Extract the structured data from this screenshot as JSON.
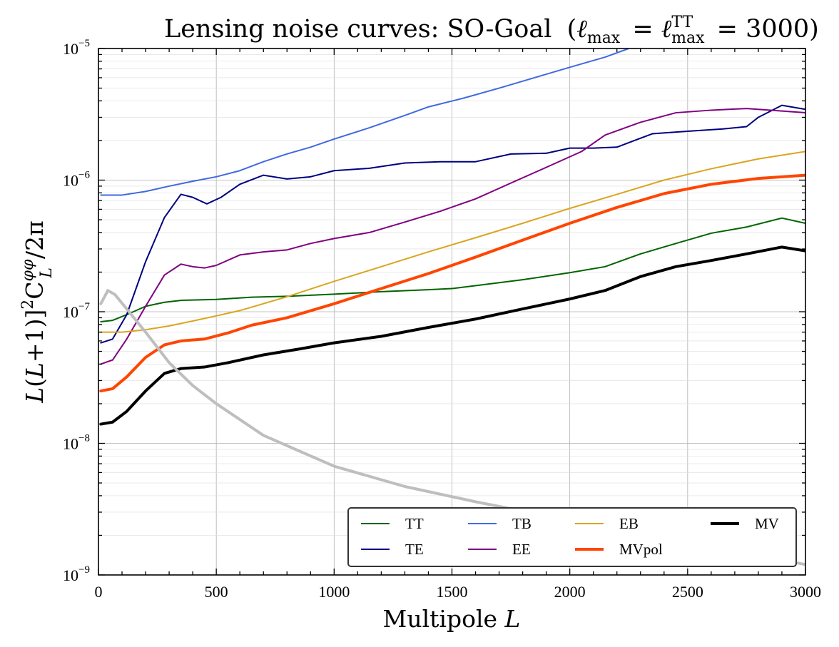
{
  "chart_data": {
    "type": "line",
    "title": "Lensing noise curves: SO-Goal",
    "title_subscript_expression": "(ℓmax = ℓTTmax = 3000)",
    "xlabel": "Multipole L",
    "ylabel": "L(L+1)]²C_L^φφ/2π",
    "x_scale": "linear",
    "y_scale": "log",
    "xlim": [
      0,
      3000
    ],
    "ylim": [
      1e-09,
      1e-05
    ],
    "x_ticks": [
      0,
      500,
      1000,
      1500,
      2000,
      2500,
      3000
    ],
    "x_tick_labels": [
      "0",
      "500",
      "1000",
      "1500",
      "2000",
      "2500",
      "3000"
    ],
    "y_tick_exponents": [
      -9,
      -8,
      -7,
      -6,
      -5
    ],
    "y_tick_base": "10",
    "grid": true,
    "legend": {
      "placement": "lower-right",
      "columns": 4
    },
    "series": [
      {
        "name": "TT",
        "color": "#006400",
        "width": "thin",
        "points": [
          [
            10,
            8.4e-08
          ],
          [
            60,
            8.6e-08
          ],
          [
            120,
            9.5e-08
          ],
          [
            200,
            1.1e-07
          ],
          [
            280,
            1.18e-07
          ],
          [
            350,
            1.22e-07
          ],
          [
            500,
            1.24e-07
          ],
          [
            650,
            1.29e-07
          ],
          [
            800,
            1.31e-07
          ],
          [
            1000,
            1.36e-07
          ],
          [
            1200,
            1.42e-07
          ],
          [
            1400,
            1.47e-07
          ],
          [
            1500,
            1.5e-07
          ],
          [
            1650,
            1.62e-07
          ],
          [
            1800,
            1.75e-07
          ],
          [
            2000,
            1.98e-07
          ],
          [
            2150,
            2.2e-07
          ],
          [
            2300,
            2.75e-07
          ],
          [
            2450,
            3.3e-07
          ],
          [
            2600,
            3.95e-07
          ],
          [
            2750,
            4.4e-07
          ],
          [
            2900,
            5.15e-07
          ],
          [
            3000,
            4.7e-07
          ]
        ]
      },
      {
        "name": "TE",
        "color": "#00007f",
        "width": "thin",
        "points": [
          [
            10,
            5.8e-08
          ],
          [
            60,
            6.2e-08
          ],
          [
            120,
            9.5e-08
          ],
          [
            200,
            2.4e-07
          ],
          [
            280,
            5.2e-07
          ],
          [
            350,
            7.8e-07
          ],
          [
            400,
            7.4e-07
          ],
          [
            460,
            6.6e-07
          ],
          [
            520,
            7.4e-07
          ],
          [
            600,
            9.3e-07
          ],
          [
            700,
            1.09e-06
          ],
          [
            800,
            1.02e-06
          ],
          [
            900,
            1.06e-06
          ],
          [
            1000,
            1.18e-06
          ],
          [
            1150,
            1.23e-06
          ],
          [
            1300,
            1.35e-06
          ],
          [
            1450,
            1.38e-06
          ],
          [
            1600,
            1.38e-06
          ],
          [
            1750,
            1.58e-06
          ],
          [
            1900,
            1.6e-06
          ],
          [
            2000,
            1.75e-06
          ],
          [
            2100,
            1.75e-06
          ],
          [
            2200,
            1.78e-06
          ],
          [
            2350,
            2.25e-06
          ],
          [
            2500,
            2.35e-06
          ],
          [
            2650,
            2.45e-06
          ],
          [
            2750,
            2.55e-06
          ],
          [
            2800,
            3e-06
          ],
          [
            2900,
            3.7e-06
          ],
          [
            3000,
            3.45e-06
          ]
        ]
      },
      {
        "name": "TB",
        "color": "#4169e1",
        "width": "thin",
        "points": [
          [
            10,
            7.7e-07
          ],
          [
            100,
            7.7e-07
          ],
          [
            200,
            8.2e-07
          ],
          [
            300,
            9e-07
          ],
          [
            400,
            9.8e-07
          ],
          [
            500,
            1.06e-06
          ],
          [
            600,
            1.18e-06
          ],
          [
            700,
            1.38e-06
          ],
          [
            800,
            1.58e-06
          ],
          [
            900,
            1.78e-06
          ],
          [
            1000,
            2.05e-06
          ],
          [
            1150,
            2.5e-06
          ],
          [
            1300,
            3.1e-06
          ],
          [
            1400,
            3.6e-06
          ],
          [
            1550,
            4.2e-06
          ],
          [
            1700,
            5e-06
          ],
          [
            1850,
            6e-06
          ],
          [
            2000,
            7.2e-06
          ],
          [
            2150,
            8.6e-06
          ],
          [
            2250,
            1e-05
          ]
        ]
      },
      {
        "name": "EE",
        "color": "#800080",
        "width": "thin",
        "points": [
          [
            10,
            4e-08
          ],
          [
            60,
            4.3e-08
          ],
          [
            120,
            6.2e-08
          ],
          [
            200,
            1.1e-07
          ],
          [
            280,
            1.9e-07
          ],
          [
            350,
            2.3e-07
          ],
          [
            400,
            2.2e-07
          ],
          [
            450,
            2.15e-07
          ],
          [
            500,
            2.25e-07
          ],
          [
            600,
            2.7e-07
          ],
          [
            700,
            2.85e-07
          ],
          [
            800,
            2.95e-07
          ],
          [
            900,
            3.3e-07
          ],
          [
            1000,
            3.6e-07
          ],
          [
            1150,
            4e-07
          ],
          [
            1300,
            4.8e-07
          ],
          [
            1450,
            5.8e-07
          ],
          [
            1600,
            7.2e-07
          ],
          [
            1750,
            9.5e-07
          ],
          [
            1900,
            1.25e-06
          ],
          [
            2050,
            1.65e-06
          ],
          [
            2150,
            2.2e-06
          ],
          [
            2300,
            2.75e-06
          ],
          [
            2450,
            3.25e-06
          ],
          [
            2600,
            3.4e-06
          ],
          [
            2750,
            3.5e-06
          ],
          [
            2900,
            3.35e-06
          ],
          [
            3000,
            3.25e-06
          ]
        ]
      },
      {
        "name": "EB",
        "color": "#daa520",
        "width": "thin",
        "points": [
          [
            10,
            7e-08
          ],
          [
            100,
            7e-08
          ],
          [
            200,
            7.3e-08
          ],
          [
            300,
            7.8e-08
          ],
          [
            400,
            8.5e-08
          ],
          [
            500,
            9.3e-08
          ],
          [
            600,
            1.02e-07
          ],
          [
            800,
            1.3e-07
          ],
          [
            1000,
            1.7e-07
          ],
          [
            1200,
            2.2e-07
          ],
          [
            1400,
            2.85e-07
          ],
          [
            1600,
            3.65e-07
          ],
          [
            1800,
            4.7e-07
          ],
          [
            2000,
            6.1e-07
          ],
          [
            2200,
            7.8e-07
          ],
          [
            2400,
            1e-06
          ],
          [
            2600,
            1.22e-06
          ],
          [
            2800,
            1.45e-06
          ],
          [
            3000,
            1.65e-06
          ]
        ]
      },
      {
        "name": "MVpol",
        "color": "#ff4500",
        "width": "thick",
        "points": [
          [
            10,
            2.5e-08
          ],
          [
            60,
            2.6e-08
          ],
          [
            120,
            3.2e-08
          ],
          [
            200,
            4.5e-08
          ],
          [
            280,
            5.6e-08
          ],
          [
            350,
            6e-08
          ],
          [
            450,
            6.2e-08
          ],
          [
            550,
            6.9e-08
          ],
          [
            650,
            7.9e-08
          ],
          [
            800,
            9e-08
          ],
          [
            1000,
            1.15e-07
          ],
          [
            1200,
            1.5e-07
          ],
          [
            1400,
            1.95e-07
          ],
          [
            1600,
            2.6e-07
          ],
          [
            1800,
            3.5e-07
          ],
          [
            2000,
            4.7e-07
          ],
          [
            2200,
            6.2e-07
          ],
          [
            2400,
            7.9e-07
          ],
          [
            2600,
            9.3e-07
          ],
          [
            2800,
            1.03e-06
          ],
          [
            3000,
            1.09e-06
          ]
        ]
      },
      {
        "name": "MV",
        "color": "#000000",
        "width": "thick",
        "points": [
          [
            10,
            1.4e-08
          ],
          [
            60,
            1.45e-08
          ],
          [
            120,
            1.75e-08
          ],
          [
            200,
            2.5e-08
          ],
          [
            280,
            3.4e-08
          ],
          [
            350,
            3.7e-08
          ],
          [
            450,
            3.8e-08
          ],
          [
            550,
            4.1e-08
          ],
          [
            700,
            4.7e-08
          ],
          [
            850,
            5.2e-08
          ],
          [
            1000,
            5.8e-08
          ],
          [
            1200,
            6.5e-08
          ],
          [
            1400,
            7.6e-08
          ],
          [
            1600,
            8.8e-08
          ],
          [
            1800,
            1.05e-07
          ],
          [
            2000,
            1.25e-07
          ],
          [
            2150,
            1.45e-07
          ],
          [
            2300,
            1.85e-07
          ],
          [
            2450,
            2.2e-07
          ],
          [
            2600,
            2.45e-07
          ],
          [
            2750,
            2.75e-07
          ],
          [
            2900,
            3.1e-07
          ],
          [
            3000,
            2.9e-07
          ]
        ]
      },
      {
        "name": "",
        "color": "#bebebe",
        "width": "thick",
        "points": [
          [
            10,
            1.15e-07
          ],
          [
            40,
            1.45e-07
          ],
          [
            70,
            1.35e-07
          ],
          [
            120,
            1.05e-07
          ],
          [
            200,
            7e-08
          ],
          [
            300,
            4.1e-08
          ],
          [
            400,
            2.75e-08
          ],
          [
            500,
            2e-08
          ],
          [
            700,
            1.15e-08
          ],
          [
            1000,
            6.7e-09
          ],
          [
            1300,
            4.7e-09
          ],
          [
            1600,
            3.6e-09
          ],
          [
            2000,
            2.6e-09
          ],
          [
            2500,
            1.8e-09
          ],
          [
            3000,
            1.2e-09
          ]
        ]
      }
    ]
  }
}
